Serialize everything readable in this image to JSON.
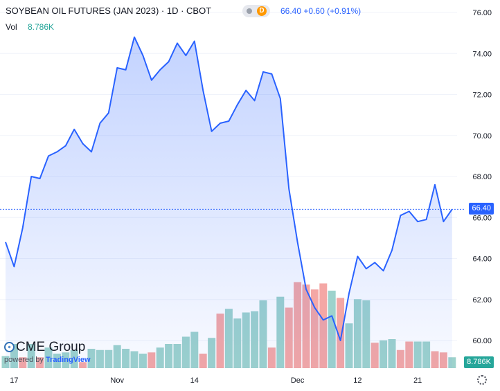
{
  "header": {
    "title": "SOYBEAN OIL FUTURES (JAN 2023) · 1D · CBOT",
    "market_badge": "D",
    "price": "66.40",
    "change": "+0.60",
    "change_pct": "(+0.91%)",
    "vol_label": "Vol",
    "vol_value": "8.786K"
  },
  "tags": {
    "last_price": "66.40",
    "last_volume": "8.786K"
  },
  "branding": {
    "logo_text": "CME Group",
    "powered_by": "powered by",
    "tv": "TradingView"
  },
  "icons": {
    "settings": "gear-icon",
    "badge_dot": "dot-icon"
  },
  "colors": {
    "line": "#2962ff",
    "up_vol": "#26a69a",
    "down_vol": "#ef5350",
    "badge": "#ff9800"
  },
  "chart_data": {
    "type": "area",
    "title": "SOYBEAN OIL FUTURES (JAN 2023) · 1D · CBOT",
    "y_ticks": [
      "60.00",
      "62.00",
      "64.00",
      "66.00",
      "68.00",
      "70.00",
      "72.00",
      "74.00",
      "76.00"
    ],
    "ylim": [
      59.5,
      76.3
    ],
    "x_ticks": [
      {
        "label": "17",
        "index": 1
      },
      {
        "label": "Nov",
        "index": 13
      },
      {
        "label": "14",
        "index": 22
      },
      {
        "label": "Dec",
        "index": 34
      },
      {
        "label": "12",
        "index": 41
      },
      {
        "label": "21",
        "index": 48
      }
    ],
    "close": [
      64.8,
      63.6,
      65.5,
      68.0,
      67.9,
      69.0,
      69.2,
      69.5,
      70.3,
      69.6,
      69.2,
      70.6,
      71.1,
      73.3,
      73.2,
      74.8,
      73.9,
      72.7,
      73.2,
      73.6,
      74.5,
      73.9,
      74.6,
      72.2,
      70.2,
      70.6,
      70.7,
      71.5,
      72.2,
      71.7,
      73.1,
      73.0,
      71.8,
      67.4,
      64.8,
      62.5,
      61.6,
      61.0,
      61.2,
      60.0,
      62.3,
      64.1,
      63.5,
      63.8,
      63.4,
      64.4,
      66.1,
      66.3,
      65.8,
      65.9,
      67.6,
      65.8,
      66.4
    ],
    "volume": [
      1.0,
      2.0,
      0.9,
      2.0,
      0.9,
      1.7,
      1.2,
      1.3,
      1.5,
      0.5,
      1.6,
      1.5,
      1.5,
      1.9,
      1.6,
      1.4,
      1.2,
      1.3,
      1.7,
      2.0,
      2.0,
      2.6,
      3.0,
      1.2,
      2.5,
      4.5,
      4.9,
      4.1,
      4.6,
      4.7,
      5.6,
      1.7,
      5.9,
      5.0,
      7.1,
      6.9,
      6.5,
      7.0,
      6.4,
      5.8,
      3.7,
      5.7,
      5.6,
      2.1,
      2.3,
      2.4,
      1.5,
      2.2,
      2.2,
      2.2,
      1.4,
      1.3,
      0.9
    ],
    "volume_up": [
      true,
      true,
      false,
      true,
      false,
      true,
      true,
      true,
      true,
      false,
      true,
      true,
      true,
      true,
      true,
      true,
      true,
      false,
      true,
      true,
      true,
      true,
      true,
      false,
      true,
      false,
      true,
      true,
      true,
      true,
      true,
      false,
      true,
      false,
      false,
      false,
      false,
      false,
      true,
      false,
      true,
      true,
      true,
      false,
      true,
      true,
      false,
      false,
      true,
      true,
      false,
      false,
      true
    ]
  }
}
